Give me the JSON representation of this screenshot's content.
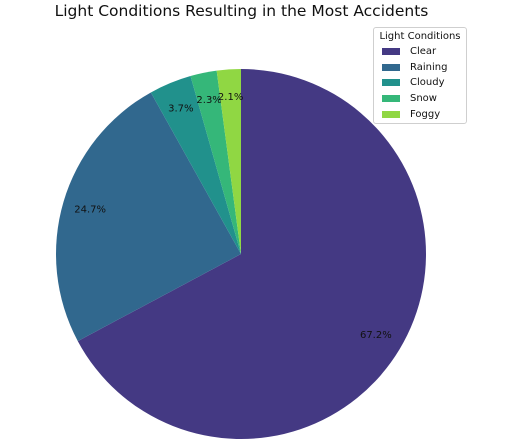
{
  "chart_data": {
    "type": "pie",
    "title": "Light Conditions Resulting in the Most Accidents",
    "legend_title": "Light Conditions",
    "legend_placement": "top-right",
    "start_angle_deg": 90,
    "direction": "clockwise",
    "labels": [
      "Clear",
      "Raining",
      "Cloudy",
      "Snow",
      "Foggy"
    ],
    "values": [
      67.2,
      24.7,
      3.7,
      2.3,
      2.1
    ],
    "percent_labels": [
      "67.2%",
      "24.7%",
      "3.7%",
      "2.3%",
      "2.1%"
    ],
    "colors": [
      "#443983",
      "#31688e",
      "#21918c",
      "#35b779",
      "#90d743"
    ]
  }
}
